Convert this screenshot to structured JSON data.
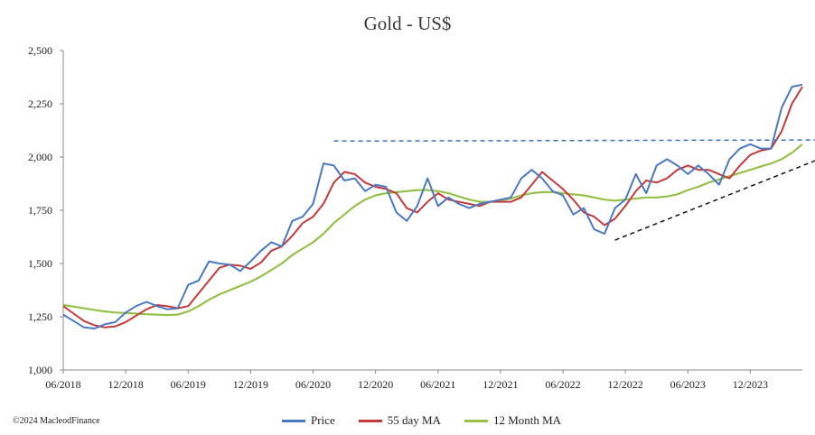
{
  "title": "Gold - US$",
  "copyright": "©2024 MacleodFinance",
  "colors": {
    "price": "#4a78c2",
    "ma55": "#c43a3a",
    "ma12m": "#96c04a",
    "trend": "#3a6fc2",
    "axis": "#888888"
  },
  "chart_data": {
    "type": "line",
    "title": "Gold - US$",
    "xlabel": "",
    "ylabel": "",
    "ylim": [
      1000,
      2500
    ],
    "yticks": [
      "1,000",
      "1,250",
      "1,500",
      "1,750",
      "2,000",
      "2,250",
      "2,500"
    ],
    "ytick_values": [
      1000,
      1250,
      1500,
      1750,
      2000,
      2250,
      2500
    ],
    "xticks": [
      "06/2018",
      "12/2018",
      "06/2019",
      "12/2019",
      "06/2020",
      "12/2020",
      "06/2021",
      "12/2021",
      "06/2022",
      "12/2022",
      "06/2023",
      "12/2023"
    ],
    "xtick_dates": [
      "2018-06",
      "2018-12",
      "2019-06",
      "2019-12",
      "2020-06",
      "2020-12",
      "2021-06",
      "2021-12",
      "2022-06",
      "2022-12",
      "2023-06",
      "2023-12"
    ],
    "xlim": [
      "2018-06",
      "2024-05"
    ],
    "grid": false,
    "legend": "bottom",
    "series": [
      {
        "name": "Price",
        "x": [
          "2018-06",
          "2018-07",
          "2018-08",
          "2018-09",
          "2018-10",
          "2018-11",
          "2018-12",
          "2019-01",
          "2019-02",
          "2019-03",
          "2019-04",
          "2019-05",
          "2019-06",
          "2019-07",
          "2019-08",
          "2019-09",
          "2019-10",
          "2019-11",
          "2019-12",
          "2020-01",
          "2020-02",
          "2020-03",
          "2020-04",
          "2020-05",
          "2020-06",
          "2020-07",
          "2020-08",
          "2020-09",
          "2020-10",
          "2020-11",
          "2020-12",
          "2021-01",
          "2021-02",
          "2021-03",
          "2021-04",
          "2021-05",
          "2021-06",
          "2021-07",
          "2021-08",
          "2021-09",
          "2021-10",
          "2021-11",
          "2021-12",
          "2022-01",
          "2022-02",
          "2022-03",
          "2022-04",
          "2022-05",
          "2022-06",
          "2022-07",
          "2022-08",
          "2022-09",
          "2022-10",
          "2022-11",
          "2022-12",
          "2023-01",
          "2023-02",
          "2023-03",
          "2023-04",
          "2023-05",
          "2023-06",
          "2023-07",
          "2023-08",
          "2023-09",
          "2023-10",
          "2023-11",
          "2023-12",
          "2024-01",
          "2024-02",
          "2024-03",
          "2024-04",
          "2024-05"
        ],
        "values": [
          1260,
          1230,
          1200,
          1195,
          1215,
          1225,
          1270,
          1300,
          1320,
          1300,
          1285,
          1290,
          1400,
          1420,
          1510,
          1500,
          1495,
          1465,
          1510,
          1560,
          1600,
          1580,
          1700,
          1720,
          1780,
          1970,
          1960,
          1890,
          1900,
          1840,
          1870,
          1860,
          1740,
          1700,
          1770,
          1900,
          1770,
          1810,
          1780,
          1760,
          1780,
          1790,
          1800,
          1810,
          1900,
          1940,
          1900,
          1840,
          1820,
          1730,
          1760,
          1660,
          1640,
          1760,
          1800,
          1920,
          1830,
          1960,
          1990,
          1960,
          1920,
          1960,
          1920,
          1870,
          1990,
          2040,
          2060,
          2040,
          2040,
          2230,
          2330,
          2340
        ]
      },
      {
        "name": "55 day MA",
        "x": [
          "2018-06",
          "2018-07",
          "2018-08",
          "2018-09",
          "2018-10",
          "2018-11",
          "2018-12",
          "2019-01",
          "2019-02",
          "2019-03",
          "2019-04",
          "2019-05",
          "2019-06",
          "2019-07",
          "2019-08",
          "2019-09",
          "2019-10",
          "2019-11",
          "2019-12",
          "2020-01",
          "2020-02",
          "2020-03",
          "2020-04",
          "2020-05",
          "2020-06",
          "2020-07",
          "2020-08",
          "2020-09",
          "2020-10",
          "2020-11",
          "2020-12",
          "2021-01",
          "2021-02",
          "2021-03",
          "2021-04",
          "2021-05",
          "2021-06",
          "2021-07",
          "2021-08",
          "2021-09",
          "2021-10",
          "2021-11",
          "2021-12",
          "2022-01",
          "2022-02",
          "2022-03",
          "2022-04",
          "2022-05",
          "2022-06",
          "2022-07",
          "2022-08",
          "2022-09",
          "2022-10",
          "2022-11",
          "2022-12",
          "2023-01",
          "2023-02",
          "2023-03",
          "2023-04",
          "2023-05",
          "2023-06",
          "2023-07",
          "2023-08",
          "2023-09",
          "2023-10",
          "2023-11",
          "2023-12",
          "2024-01",
          "2024-02",
          "2024-03",
          "2024-04",
          "2024-05"
        ],
        "values": [
          1300,
          1265,
          1230,
          1210,
          1200,
          1205,
          1225,
          1255,
          1285,
          1305,
          1300,
          1290,
          1300,
          1360,
          1420,
          1480,
          1495,
          1490,
          1475,
          1505,
          1560,
          1580,
          1630,
          1690,
          1720,
          1780,
          1880,
          1930,
          1920,
          1880,
          1860,
          1850,
          1830,
          1760,
          1740,
          1790,
          1830,
          1800,
          1790,
          1780,
          1770,
          1790,
          1790,
          1790,
          1810,
          1870,
          1930,
          1890,
          1850,
          1800,
          1740,
          1720,
          1680,
          1710,
          1770,
          1840,
          1890,
          1880,
          1900,
          1940,
          1960,
          1940,
          1940,
          1920,
          1900,
          1960,
          2010,
          2030,
          2040,
          2120,
          2250,
          2330
        ]
      },
      {
        "name": "12 Month MA",
        "x": [
          "2018-06",
          "2018-07",
          "2018-08",
          "2018-09",
          "2018-10",
          "2018-11",
          "2018-12",
          "2019-01",
          "2019-02",
          "2019-03",
          "2019-04",
          "2019-05",
          "2019-06",
          "2019-07",
          "2019-08",
          "2019-09",
          "2019-10",
          "2019-11",
          "2019-12",
          "2020-01",
          "2020-02",
          "2020-03",
          "2020-04",
          "2020-05",
          "2020-06",
          "2020-07",
          "2020-08",
          "2020-09",
          "2020-10",
          "2020-11",
          "2020-12",
          "2021-01",
          "2021-02",
          "2021-03",
          "2021-04",
          "2021-05",
          "2021-06",
          "2021-07",
          "2021-08",
          "2021-09",
          "2021-10",
          "2021-11",
          "2021-12",
          "2022-01",
          "2022-02",
          "2022-03",
          "2022-04",
          "2022-05",
          "2022-06",
          "2022-07",
          "2022-08",
          "2022-09",
          "2022-10",
          "2022-11",
          "2022-12",
          "2023-01",
          "2023-02",
          "2023-03",
          "2023-04",
          "2023-05",
          "2023-06",
          "2023-07",
          "2023-08",
          "2023-09",
          "2023-10",
          "2023-11",
          "2023-12",
          "2024-01",
          "2024-02",
          "2024-03",
          "2024-04",
          "2024-05"
        ],
        "values": [
          1305,
          1298,
          1290,
          1282,
          1275,
          1270,
          1268,
          1265,
          1262,
          1260,
          1258,
          1260,
          1275,
          1300,
          1330,
          1355,
          1375,
          1395,
          1415,
          1440,
          1470,
          1500,
          1540,
          1570,
          1600,
          1640,
          1690,
          1730,
          1770,
          1800,
          1820,
          1830,
          1835,
          1840,
          1845,
          1845,
          1840,
          1830,
          1815,
          1800,
          1790,
          1790,
          1795,
          1805,
          1820,
          1830,
          1835,
          1835,
          1830,
          1825,
          1820,
          1810,
          1800,
          1795,
          1800,
          1805,
          1810,
          1810,
          1815,
          1825,
          1845,
          1860,
          1880,
          1895,
          1910,
          1925,
          1940,
          1955,
          1970,
          1990,
          2020,
          2060
        ]
      }
    ],
    "annotations": [
      {
        "type": "resistance",
        "style": "dashed",
        "from": [
          "2020-08",
          2075
        ],
        "to": [
          "2024-05",
          2080
        ]
      },
      {
        "type": "support",
        "style": "dashed",
        "from": [
          "2022-11",
          1610
        ],
        "to": [
          "2024-05",
          1970
        ]
      }
    ]
  }
}
